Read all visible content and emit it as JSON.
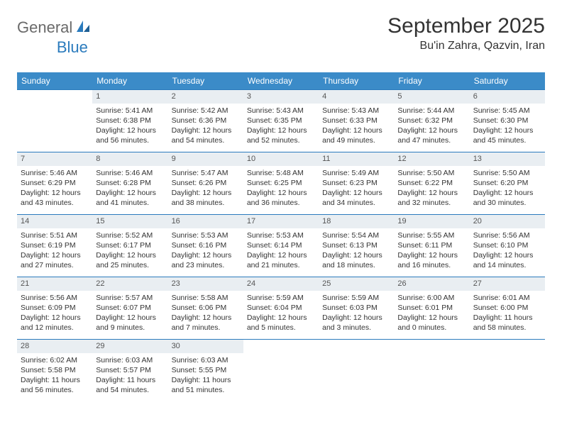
{
  "logo": {
    "part1": "General",
    "part2": "Blue"
  },
  "header": {
    "month_title": "September 2025",
    "location": "Bu'in Zahra, Qazvin, Iran"
  },
  "colors": {
    "header_bg": "#3b8bc8",
    "header_text": "#ffffff",
    "rule": "#2b7bbd",
    "daynum_bg": "#e9eef2",
    "text": "#333333"
  },
  "typography": {
    "title_fontsize": 30,
    "location_fontsize": 16,
    "dow_fontsize": 12,
    "cell_fontsize": 10.5
  },
  "days_of_week": [
    "Sunday",
    "Monday",
    "Tuesday",
    "Wednesday",
    "Thursday",
    "Friday",
    "Saturday"
  ],
  "weeks": [
    [
      {
        "n": ""
      },
      {
        "n": "1",
        "sr": "5:41 AM",
        "ss": "6:38 PM",
        "dl": "12 hours and 56 minutes."
      },
      {
        "n": "2",
        "sr": "5:42 AM",
        "ss": "6:36 PM",
        "dl": "12 hours and 54 minutes."
      },
      {
        "n": "3",
        "sr": "5:43 AM",
        "ss": "6:35 PM",
        "dl": "12 hours and 52 minutes."
      },
      {
        "n": "4",
        "sr": "5:43 AM",
        "ss": "6:33 PM",
        "dl": "12 hours and 49 minutes."
      },
      {
        "n": "5",
        "sr": "5:44 AM",
        "ss": "6:32 PM",
        "dl": "12 hours and 47 minutes."
      },
      {
        "n": "6",
        "sr": "5:45 AM",
        "ss": "6:30 PM",
        "dl": "12 hours and 45 minutes."
      }
    ],
    [
      {
        "n": "7",
        "sr": "5:46 AM",
        "ss": "6:29 PM",
        "dl": "12 hours and 43 minutes."
      },
      {
        "n": "8",
        "sr": "5:46 AM",
        "ss": "6:28 PM",
        "dl": "12 hours and 41 minutes."
      },
      {
        "n": "9",
        "sr": "5:47 AM",
        "ss": "6:26 PM",
        "dl": "12 hours and 38 minutes."
      },
      {
        "n": "10",
        "sr": "5:48 AM",
        "ss": "6:25 PM",
        "dl": "12 hours and 36 minutes."
      },
      {
        "n": "11",
        "sr": "5:49 AM",
        "ss": "6:23 PM",
        "dl": "12 hours and 34 minutes."
      },
      {
        "n": "12",
        "sr": "5:50 AM",
        "ss": "6:22 PM",
        "dl": "12 hours and 32 minutes."
      },
      {
        "n": "13",
        "sr": "5:50 AM",
        "ss": "6:20 PM",
        "dl": "12 hours and 30 minutes."
      }
    ],
    [
      {
        "n": "14",
        "sr": "5:51 AM",
        "ss": "6:19 PM",
        "dl": "12 hours and 27 minutes."
      },
      {
        "n": "15",
        "sr": "5:52 AM",
        "ss": "6:17 PM",
        "dl": "12 hours and 25 minutes."
      },
      {
        "n": "16",
        "sr": "5:53 AM",
        "ss": "6:16 PM",
        "dl": "12 hours and 23 minutes."
      },
      {
        "n": "17",
        "sr": "5:53 AM",
        "ss": "6:14 PM",
        "dl": "12 hours and 21 minutes."
      },
      {
        "n": "18",
        "sr": "5:54 AM",
        "ss": "6:13 PM",
        "dl": "12 hours and 18 minutes."
      },
      {
        "n": "19",
        "sr": "5:55 AM",
        "ss": "6:11 PM",
        "dl": "12 hours and 16 minutes."
      },
      {
        "n": "20",
        "sr": "5:56 AM",
        "ss": "6:10 PM",
        "dl": "12 hours and 14 minutes."
      }
    ],
    [
      {
        "n": "21",
        "sr": "5:56 AM",
        "ss": "6:09 PM",
        "dl": "12 hours and 12 minutes."
      },
      {
        "n": "22",
        "sr": "5:57 AM",
        "ss": "6:07 PM",
        "dl": "12 hours and 9 minutes."
      },
      {
        "n": "23",
        "sr": "5:58 AM",
        "ss": "6:06 PM",
        "dl": "12 hours and 7 minutes."
      },
      {
        "n": "24",
        "sr": "5:59 AM",
        "ss": "6:04 PM",
        "dl": "12 hours and 5 minutes."
      },
      {
        "n": "25",
        "sr": "5:59 AM",
        "ss": "6:03 PM",
        "dl": "12 hours and 3 minutes."
      },
      {
        "n": "26",
        "sr": "6:00 AM",
        "ss": "6:01 PM",
        "dl": "12 hours and 0 minutes."
      },
      {
        "n": "27",
        "sr": "6:01 AM",
        "ss": "6:00 PM",
        "dl": "11 hours and 58 minutes."
      }
    ],
    [
      {
        "n": "28",
        "sr": "6:02 AM",
        "ss": "5:58 PM",
        "dl": "11 hours and 56 minutes."
      },
      {
        "n": "29",
        "sr": "6:03 AM",
        "ss": "5:57 PM",
        "dl": "11 hours and 54 minutes."
      },
      {
        "n": "30",
        "sr": "6:03 AM",
        "ss": "5:55 PM",
        "dl": "11 hours and 51 minutes."
      },
      {
        "n": ""
      },
      {
        "n": ""
      },
      {
        "n": ""
      },
      {
        "n": ""
      }
    ]
  ],
  "labels": {
    "sunrise": "Sunrise: ",
    "sunset": "Sunset: ",
    "daylight": "Daylight: "
  }
}
